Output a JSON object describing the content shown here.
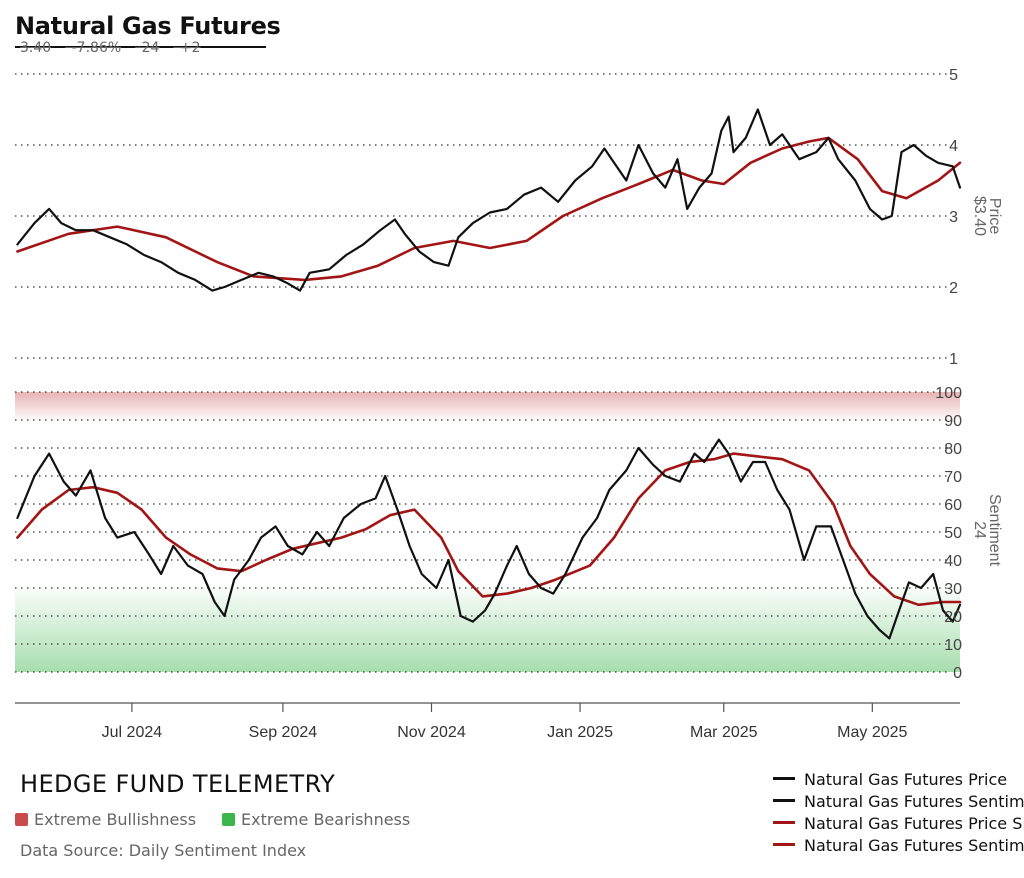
{
  "header": {
    "title": "Natural Gas Futures",
    "last_price": "3.40",
    "change_pct": "-7.86%",
    "sentiment": "24",
    "sentiment_change": "+2"
  },
  "right_axis": {
    "price_title": "Price",
    "price_value": "$3.40",
    "sentiment_title": "Sentiment",
    "sentiment_value": "24"
  },
  "footer": {
    "brand": "HEDGE FUND TELEMETRY",
    "bull_label": "Extreme Bullishness",
    "bear_label": "Extreme Bearishness",
    "source": "Data Source: Daily Sentiment Index"
  },
  "legend": [
    {
      "label": "Natural Gas Futures Price",
      "color": "#111111"
    },
    {
      "label": "Natural Gas Futures Sentiment",
      "color": "#111111"
    },
    {
      "label": "Natural Gas Futures Price SMA",
      "color": "#a31515"
    },
    {
      "label": "Natural Gas Futures Sentiment SMA",
      "color": "#a31515"
    }
  ],
  "colors": {
    "line": "#111111",
    "sma": "#a31515",
    "bull_zone": "#c94b4b",
    "bear_zone": "#3cb54a",
    "grid": "#333333"
  },
  "chart_data": [
    {
      "type": "line",
      "panel": "price",
      "x_ticks": [
        "Jul 2024",
        "Sep 2024",
        "Nov 2024",
        "Jan 2025",
        "Mar 2025",
        "May 2025"
      ],
      "y_ticks": [
        1,
        2,
        3,
        4,
        5
      ],
      "ylim": [
        1,
        5
      ],
      "grid": true,
      "series": [
        {
          "name": "Natural Gas Futures Price",
          "points": [
            [
              "2024-05-15",
              2.6
            ],
            [
              "2024-05-22",
              2.9
            ],
            [
              "2024-05-28",
              3.1
            ],
            [
              "2024-06-02",
              2.9
            ],
            [
              "2024-06-08",
              2.8
            ],
            [
              "2024-06-15",
              2.8
            ],
            [
              "2024-06-22",
              2.7
            ],
            [
              "2024-06-29",
              2.6
            ],
            [
              "2024-07-06",
              2.45
            ],
            [
              "2024-07-13",
              2.35
            ],
            [
              "2024-07-20",
              2.2
            ],
            [
              "2024-07-27",
              2.1
            ],
            [
              "2024-08-03",
              1.95
            ],
            [
              "2024-08-08",
              2.0
            ],
            [
              "2024-08-15",
              2.1
            ],
            [
              "2024-08-22",
              2.2
            ],
            [
              "2024-08-28",
              2.15
            ],
            [
              "2024-09-03",
              2.05
            ],
            [
              "2024-09-08",
              1.95
            ],
            [
              "2024-09-12",
              2.2
            ],
            [
              "2024-09-20",
              2.25
            ],
            [
              "2024-09-27",
              2.45
            ],
            [
              "2024-10-04",
              2.6
            ],
            [
              "2024-10-11",
              2.8
            ],
            [
              "2024-10-17",
              2.95
            ],
            [
              "2024-10-21",
              2.75
            ],
            [
              "2024-10-27",
              2.5
            ],
            [
              "2024-11-02",
              2.35
            ],
            [
              "2024-11-08",
              2.3
            ],
            [
              "2024-11-12",
              2.7
            ],
            [
              "2024-11-18",
              2.9
            ],
            [
              "2024-11-25",
              3.05
            ],
            [
              "2024-12-02",
              3.1
            ],
            [
              "2024-12-09",
              3.3
            ],
            [
              "2024-12-16",
              3.4
            ],
            [
              "2024-12-23",
              3.2
            ],
            [
              "2024-12-30",
              3.5
            ],
            [
              "2025-01-06",
              3.7
            ],
            [
              "2025-01-11",
              3.95
            ],
            [
              "2025-01-15",
              3.75
            ],
            [
              "2025-01-20",
              3.5
            ],
            [
              "2025-01-25",
              4.0
            ],
            [
              "2025-01-31",
              3.6
            ],
            [
              "2025-02-05",
              3.4
            ],
            [
              "2025-02-10",
              3.8
            ],
            [
              "2025-02-14",
              3.1
            ],
            [
              "2025-02-19",
              3.4
            ],
            [
              "2025-02-24",
              3.6
            ],
            [
              "2025-02-28",
              4.2
            ],
            [
              "2025-03-03",
              4.4
            ],
            [
              "2025-03-05",
              3.9
            ],
            [
              "2025-03-10",
              4.1
            ],
            [
              "2025-03-15",
              4.5
            ],
            [
              "2025-03-20",
              4.0
            ],
            [
              "2025-03-25",
              4.15
            ],
            [
              "2025-04-01",
              3.8
            ],
            [
              "2025-04-08",
              3.9
            ],
            [
              "2025-04-13",
              4.1
            ],
            [
              "2025-04-17",
              3.8
            ],
            [
              "2025-04-24",
              3.5
            ],
            [
              "2025-04-30",
              3.1
            ],
            [
              "2025-05-05",
              2.95
            ],
            [
              "2025-05-09",
              3.0
            ],
            [
              "2025-05-13",
              3.9
            ],
            [
              "2025-05-18",
              4.0
            ],
            [
              "2025-05-23",
              3.85
            ],
            [
              "2025-05-28",
              3.75
            ],
            [
              "2025-06-03",
              3.7
            ],
            [
              "2025-06-06",
              3.4
            ]
          ]
        },
        {
          "name": "Natural Gas Futures Price SMA",
          "points": [
            [
              "2024-05-15",
              2.5
            ],
            [
              "2024-06-05",
              2.75
            ],
            [
              "2024-06-25",
              2.85
            ],
            [
              "2024-07-15",
              2.7
            ],
            [
              "2024-08-05",
              2.35
            ],
            [
              "2024-08-20",
              2.15
            ],
            [
              "2024-09-10",
              2.1
            ],
            [
              "2024-09-25",
              2.15
            ],
            [
              "2024-10-10",
              2.3
            ],
            [
              "2024-10-25",
              2.55
            ],
            [
              "2024-11-10",
              2.65
            ],
            [
              "2024-11-25",
              2.55
            ],
            [
              "2024-12-10",
              2.65
            ],
            [
              "2024-12-25",
              3.0
            ],
            [
              "2025-01-10",
              3.25
            ],
            [
              "2025-01-25",
              3.45
            ],
            [
              "2025-02-08",
              3.65
            ],
            [
              "2025-02-20",
              3.5
            ],
            [
              "2025-03-01",
              3.45
            ],
            [
              "2025-03-12",
              3.75
            ],
            [
              "2025-03-25",
              3.95
            ],
            [
              "2025-04-05",
              4.05
            ],
            [
              "2025-04-13",
              4.1
            ],
            [
              "2025-04-25",
              3.8
            ],
            [
              "2025-05-05",
              3.35
            ],
            [
              "2025-05-15",
              3.25
            ],
            [
              "2025-05-28",
              3.5
            ],
            [
              "2025-06-06",
              3.75
            ]
          ]
        }
      ]
    },
    {
      "type": "line",
      "panel": "sentiment",
      "y_ticks": [
        0,
        10,
        20,
        30,
        40,
        50,
        60,
        70,
        80,
        90,
        100
      ],
      "ylim": [
        0,
        100
      ],
      "bands": [
        {
          "label": "Extreme Bullishness",
          "from": 90,
          "to": 100
        },
        {
          "label": "Extreme Bearishness",
          "from": 0,
          "to": 30
        }
      ],
      "grid": true,
      "series": [
        {
          "name": "Natural Gas Futures Sentiment",
          "points": [
            [
              "2024-05-15",
              55
            ],
            [
              "2024-05-22",
              70
            ],
            [
              "2024-05-28",
              78
            ],
            [
              "2024-06-03",
              68
            ],
            [
              "2024-06-08",
              63
            ],
            [
              "2024-06-14",
              72
            ],
            [
              "2024-06-20",
              55
            ],
            [
              "2024-06-25",
              48
            ],
            [
              "2024-07-02",
              50
            ],
            [
              "2024-07-08",
              42
            ],
            [
              "2024-07-13",
              35
            ],
            [
              "2024-07-18",
              45
            ],
            [
              "2024-07-24",
              38
            ],
            [
              "2024-07-30",
              35
            ],
            [
              "2024-08-04",
              25
            ],
            [
              "2024-08-08",
              20
            ],
            [
              "2024-08-12",
              33
            ],
            [
              "2024-08-18",
              40
            ],
            [
              "2024-08-23",
              48
            ],
            [
              "2024-08-29",
              52
            ],
            [
              "2024-09-03",
              45
            ],
            [
              "2024-09-09",
              42
            ],
            [
              "2024-09-15",
              50
            ],
            [
              "2024-09-20",
              45
            ],
            [
              "2024-09-26",
              55
            ],
            [
              "2024-10-03",
              60
            ],
            [
              "2024-10-09",
              62
            ],
            [
              "2024-10-13",
              70
            ],
            [
              "2024-10-18",
              58
            ],
            [
              "2024-10-23",
              45
            ],
            [
              "2024-10-28",
              35
            ],
            [
              "2024-11-03",
              30
            ],
            [
              "2024-11-08",
              40
            ],
            [
              "2024-11-13",
              20
            ],
            [
              "2024-11-18",
              18
            ],
            [
              "2024-11-23",
              22
            ],
            [
              "2024-11-27",
              28
            ],
            [
              "2024-12-02",
              38
            ],
            [
              "2024-12-06",
              45
            ],
            [
              "2024-12-11",
              35
            ],
            [
              "2024-12-16",
              30
            ],
            [
              "2024-12-21",
              28
            ],
            [
              "2024-12-26",
              35
            ],
            [
              "2025-01-02",
              48
            ],
            [
              "2025-01-08",
              55
            ],
            [
              "2025-01-13",
              65
            ],
            [
              "2025-01-20",
              72
            ],
            [
              "2025-01-25",
              80
            ],
            [
              "2025-01-31",
              74
            ],
            [
              "2025-02-05",
              70
            ],
            [
              "2025-02-11",
              68
            ],
            [
              "2025-02-17",
              78
            ],
            [
              "2025-02-21",
              75
            ],
            [
              "2025-02-27",
              83
            ],
            [
              "2025-03-03",
              78
            ],
            [
              "2025-03-08",
              68
            ],
            [
              "2025-03-13",
              75
            ],
            [
              "2025-03-18",
              75
            ],
            [
              "2025-03-23",
              65
            ],
            [
              "2025-03-28",
              58
            ],
            [
              "2025-04-03",
              40
            ],
            [
              "2025-04-08",
              52
            ],
            [
              "2025-04-14",
              52
            ],
            [
              "2025-04-19",
              40
            ],
            [
              "2025-04-24",
              28
            ],
            [
              "2025-04-29",
              20
            ],
            [
              "2025-05-04",
              15
            ],
            [
              "2025-05-08",
              12
            ],
            [
              "2025-05-12",
              22
            ],
            [
              "2025-05-16",
              32
            ],
            [
              "2025-05-21",
              30
            ],
            [
              "2025-05-26",
              35
            ],
            [
              "2025-05-30",
              22
            ],
            [
              "2025-06-03",
              18
            ],
            [
              "2025-06-06",
              24
            ]
          ]
        },
        {
          "name": "Natural Gas Futures Sentiment SMA",
          "points": [
            [
              "2024-05-15",
              48
            ],
            [
              "2024-05-25",
              58
            ],
            [
              "2024-06-05",
              65
            ],
            [
              "2024-06-15",
              66
            ],
            [
              "2024-06-25",
              64
            ],
            [
              "2024-07-05",
              58
            ],
            [
              "2024-07-15",
              48
            ],
            [
              "2024-07-25",
              42
            ],
            [
              "2024-08-05",
              37
            ],
            [
              "2024-08-15",
              36
            ],
            [
              "2024-08-25",
              40
            ],
            [
              "2024-09-05",
              44
            ],
            [
              "2024-09-15",
              46
            ],
            [
              "2024-09-25",
              48
            ],
            [
              "2024-10-05",
              51
            ],
            [
              "2024-10-15",
              56
            ],
            [
              "2024-10-25",
              58
            ],
            [
              "2024-11-05",
              48
            ],
            [
              "2024-11-12",
              36
            ],
            [
              "2024-11-22",
              27
            ],
            [
              "2024-12-02",
              28
            ],
            [
              "2024-12-12",
              30
            ],
            [
              "2024-12-22",
              33
            ],
            [
              "2025-01-05",
              38
            ],
            [
              "2025-01-15",
              48
            ],
            [
              "2025-01-25",
              62
            ],
            [
              "2025-02-05",
              72
            ],
            [
              "2025-02-15",
              75
            ],
            [
              "2025-02-25",
              76
            ],
            [
              "2025-03-05",
              78
            ],
            [
              "2025-03-15",
              77
            ],
            [
              "2025-03-25",
              76
            ],
            [
              "2025-04-05",
              72
            ],
            [
              "2025-04-15",
              60
            ],
            [
              "2025-04-22",
              45
            ],
            [
              "2025-04-30",
              35
            ],
            [
              "2025-05-10",
              27
            ],
            [
              "2025-05-20",
              24
            ],
            [
              "2025-05-30",
              25
            ],
            [
              "2025-06-06",
              25
            ]
          ]
        }
      ]
    }
  ]
}
